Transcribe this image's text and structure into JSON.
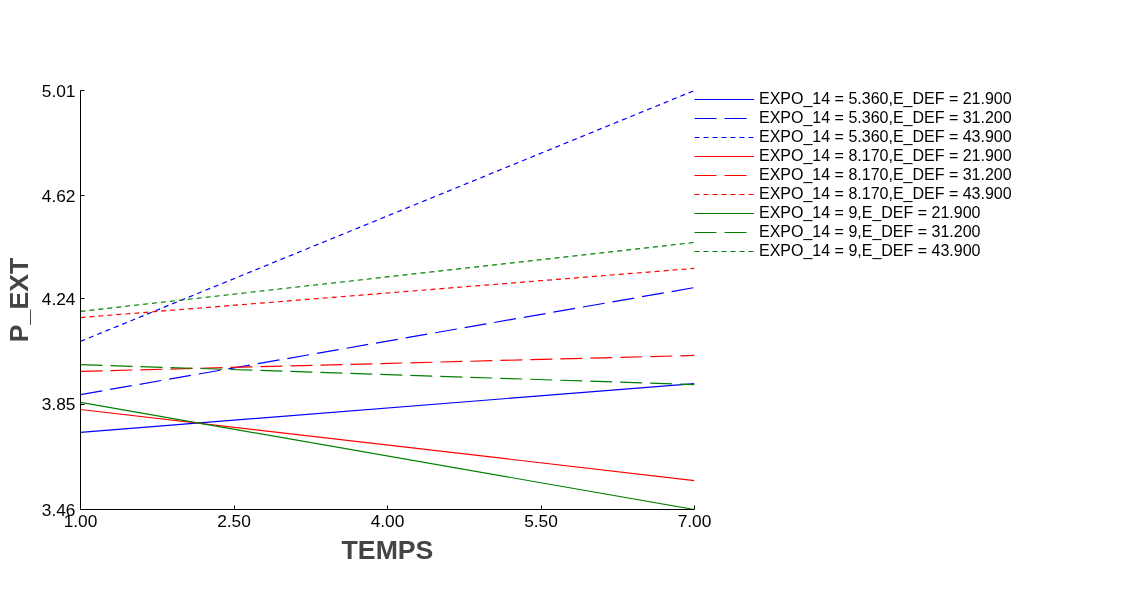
{
  "chart_data": {
    "type": "line",
    "xlabel": "TEMPS",
    "ylabel": "P_EXT",
    "x": [
      1,
      7
    ],
    "xlim": [
      1,
      7
    ],
    "ylim": [
      3.46,
      5.01
    ],
    "xticks": [
      {
        "value": 1,
        "label": "1.00"
      },
      {
        "value": 2.5,
        "label": "2.50"
      },
      {
        "value": 4,
        "label": "4.00"
      },
      {
        "value": 5.5,
        "label": "5.50"
      },
      {
        "value": 7,
        "label": "7.00"
      }
    ],
    "yticks": [
      3.46,
      3.85,
      4.24,
      4.62,
      5.01
    ],
    "grid": false,
    "legend": "right",
    "marker": "none",
    "series": [
      {
        "name": "EXPO_14 = 5.360,E_DEF = 21.900",
        "color": "#0000ff",
        "line_style": "solid",
        "values": [
          3.745,
          3.926
        ]
      },
      {
        "name": "EXPO_14 = 5.360,E_DEF = 31.200",
        "color": "#0000ff",
        "line_style": "dashed",
        "values": [
          3.885,
          4.281
        ]
      },
      {
        "name": "EXPO_14 = 5.360,E_DEF = 43.900",
        "color": "#0000ff",
        "line_style": "dotted",
        "values": [
          4.082,
          5.01
        ]
      },
      {
        "name": "EXPO_14 = 8.170,E_DEF = 21.900",
        "color": "#ff0000",
        "line_style": "solid",
        "values": [
          3.83,
          3.567
        ]
      },
      {
        "name": "EXPO_14 = 8.170,E_DEF = 31.200",
        "color": "#ff0000",
        "line_style": "dashed",
        "values": [
          3.971,
          4.03
        ]
      },
      {
        "name": "EXPO_14 = 8.170,E_DEF = 43.900",
        "color": "#ff0000",
        "line_style": "dotted",
        "values": [
          4.17,
          4.352
        ]
      },
      {
        "name": "EXPO_14 = 9,E_DEF = 21.900",
        "color": "#008000",
        "line_style": "solid",
        "values": [
          3.856,
          3.46
        ]
      },
      {
        "name": "EXPO_14 = 9,E_DEF = 31.200",
        "color": "#008000",
        "line_style": "dashed",
        "values": [
          3.996,
          3.922
        ]
      },
      {
        "name": "EXPO_14 = 9,E_DEF = 43.900",
        "color": "#008000",
        "line_style": "dotted",
        "values": [
          4.193,
          4.448
        ]
      }
    ]
  }
}
